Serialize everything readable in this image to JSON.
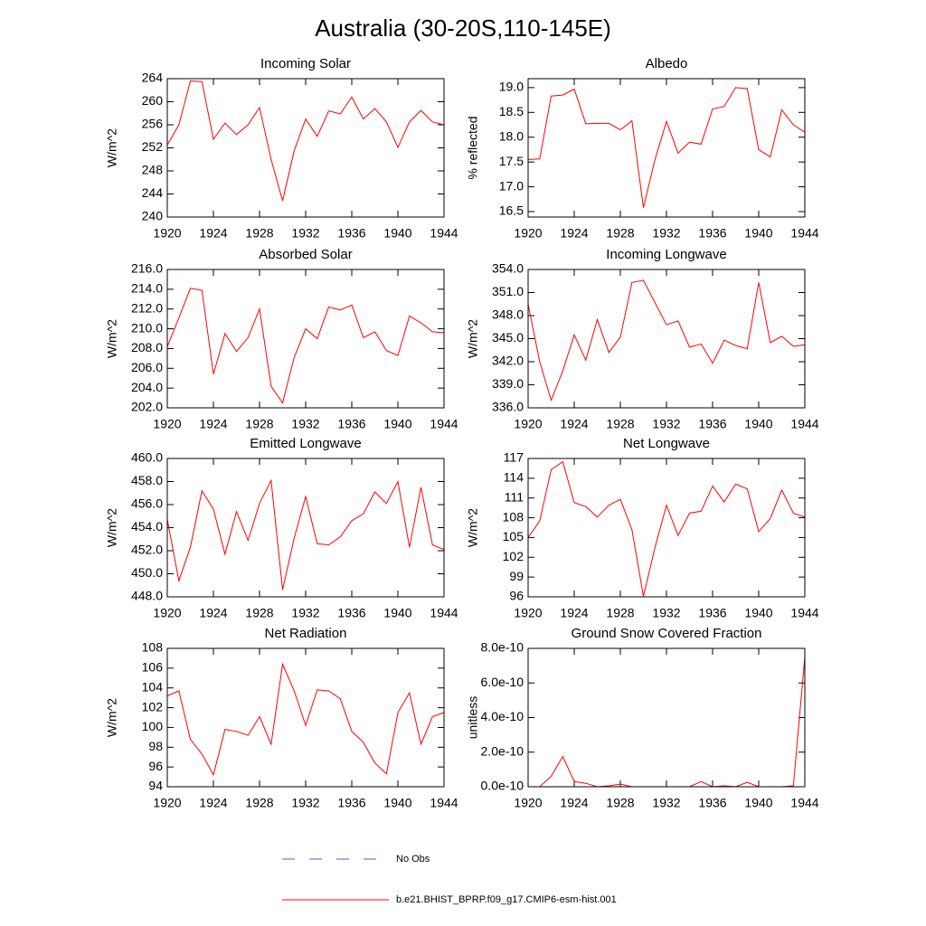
{
  "title": "Australia (30-20S,110-145E)",
  "legend": [
    {
      "label": "No Obs",
      "color": "#5a5acd",
      "dash": true
    },
    {
      "label": "b.e21.BHIST_BPRP.f09_g17.CMIP6-esm-hist.001",
      "color": "#ff0000",
      "dash": false
    }
  ],
  "chart_data": [
    {
      "type": "line",
      "title": "Incoming Solar",
      "y_label": "W/m^2",
      "color": "#ff0000",
      "x": [
        1920,
        1921,
        1922,
        1923,
        1924,
        1925,
        1926,
        1927,
        1928,
        1929,
        1930,
        1931,
        1932,
        1933,
        1934,
        1935,
        1936,
        1937,
        1938,
        1939,
        1940,
        1941,
        1942,
        1943,
        1944
      ],
      "values": [
        252.5,
        256,
        263.6,
        263.5,
        253.5,
        256.3,
        254.3,
        256,
        259,
        250,
        242.8,
        251.5,
        257,
        254,
        258.4,
        257.9,
        260.8,
        257,
        258.8,
        256.5,
        252.1,
        256.5,
        258.5,
        256.5,
        256
      ],
      "xlim": [
        1920,
        1944
      ],
      "xticks": [
        1920,
        1924,
        1928,
        1932,
        1936,
        1940,
        1944
      ],
      "ylim": [
        240,
        264
      ],
      "yticks": [
        240,
        244,
        248,
        252,
        256,
        260,
        264
      ]
    },
    {
      "type": "line",
      "title": "Albedo",
      "y_label": "% reflected",
      "color": "#ff0000",
      "x": [
        1920,
        1921,
        1922,
        1923,
        1924,
        1925,
        1926,
        1927,
        1928,
        1929,
        1930,
        1931,
        1932,
        1933,
        1934,
        1935,
        1936,
        1937,
        1938,
        1939,
        1940,
        1941,
        1942,
        1943,
        1944
      ],
      "values": [
        17.55,
        17.56,
        18.83,
        18.85,
        18.97,
        18.27,
        18.28,
        18.28,
        18.15,
        18.33,
        16.58,
        17.55,
        18.32,
        17.68,
        17.9,
        17.86,
        18.57,
        18.62,
        19.0,
        18.98,
        17.75,
        17.6,
        18.55,
        18.25,
        18.1
      ],
      "xlim": [
        1920,
        1944
      ],
      "xticks": [
        1920,
        1924,
        1928,
        1932,
        1936,
        1940,
        1944
      ],
      "ylim": [
        16.39,
        19.18
      ],
      "yticks": [
        16.5,
        {
          "value": 17,
          "label": "17.0"
        },
        17.5,
        {
          "value": 18,
          "label": "18.0"
        },
        18.5,
        {
          "value": 19,
          "label": "19.0"
        }
      ]
    },
    {
      "type": "line",
      "title": "Absorbed Solar",
      "y_label": "W/m^2",
      "color": "#ff0000",
      "x": [
        1920,
        1921,
        1922,
        1923,
        1924,
        1925,
        1926,
        1927,
        1928,
        1929,
        1930,
        1931,
        1932,
        1933,
        1934,
        1935,
        1936,
        1937,
        1938,
        1939,
        1940,
        1941,
        1942,
        1943,
        1944
      ],
      "values": [
        208.2,
        211.1,
        214.1,
        213.9,
        205.4,
        209.5,
        207.7,
        209.1,
        212.0,
        204.2,
        202.5,
        207.1,
        210.0,
        209.0,
        212.2,
        211.9,
        212.4,
        209.1,
        209.7,
        207.8,
        207.3,
        211.3,
        210.6,
        209.7,
        209.6
      ],
      "xlim": [
        1920,
        1944
      ],
      "xticks": [
        1920,
        1924,
        1928,
        1932,
        1936,
        1940,
        1944
      ],
      "ylim": [
        202,
        216
      ],
      "yticks": [
        {
          "value": 202,
          "label": "202.0"
        },
        {
          "value": 204,
          "label": "204.0"
        },
        {
          "value": 206,
          "label": "206.0"
        },
        {
          "value": 208,
          "label": "208.0"
        },
        {
          "value": 210,
          "label": "210.0"
        },
        {
          "value": 212,
          "label": "212.0"
        },
        {
          "value": 214,
          "label": "214.0"
        },
        {
          "value": 216,
          "label": "216.0"
        }
      ]
    },
    {
      "type": "line",
      "title": "Incoming Longwave",
      "y_label": "W/m^2",
      "color": "#ff0000",
      "x": [
        1920,
        1921,
        1922,
        1923,
        1924,
        1925,
        1926,
        1927,
        1928,
        1929,
        1930,
        1931,
        1932,
        1933,
        1934,
        1935,
        1936,
        1937,
        1938,
        1939,
        1940,
        1941,
        1942,
        1943,
        1944
      ],
      "values": [
        349.5,
        342,
        337,
        340.8,
        345.5,
        342.2,
        347.5,
        343.2,
        345.2,
        352.3,
        352.6,
        349.7,
        346.8,
        347.3,
        343.9,
        344.3,
        341.8,
        344.8,
        344.1,
        343.7,
        352.3,
        344.5,
        345.3,
        344,
        344.2
      ],
      "xlim": [
        1920,
        1944
      ],
      "xticks": [
        1920,
        1924,
        1928,
        1932,
        1936,
        1940,
        1944
      ],
      "ylim": [
        336,
        354
      ],
      "yticks": [
        {
          "value": 336,
          "label": "336.0"
        },
        {
          "value": 339,
          "label": "339.0"
        },
        {
          "value": 342,
          "label": "342.0"
        },
        {
          "value": 345,
          "label": "345.0"
        },
        {
          "value": 348,
          "label": "348.0"
        },
        {
          "value": 351,
          "label": "351.0"
        },
        {
          "value": 354,
          "label": "354.0"
        }
      ]
    },
    {
      "type": "line",
      "title": "Emitted Longwave",
      "y_label": "W/m^2",
      "color": "#ff0000",
      "x": [
        1920,
        1921,
        1922,
        1923,
        1924,
        1925,
        1926,
        1927,
        1928,
        1929,
        1930,
        1931,
        1932,
        1933,
        1934,
        1935,
        1936,
        1937,
        1938,
        1939,
        1940,
        1941,
        1942,
        1943,
        1944
      ],
      "values": [
        454.7,
        449.4,
        452.3,
        457.2,
        455.6,
        451.7,
        455.4,
        452.9,
        456.1,
        458.1,
        448.6,
        453.1,
        456.7,
        452.6,
        452.5,
        453.2,
        454.6,
        455.2,
        457.1,
        456.1,
        458,
        452.3,
        457.5,
        452.5,
        452.1
      ],
      "xlim": [
        1920,
        1944
      ],
      "xticks": [
        1920,
        1924,
        1928,
        1932,
        1936,
        1940,
        1944
      ],
      "ylim": [
        448,
        460
      ],
      "yticks": [
        {
          "value": 448,
          "label": "448.0"
        },
        {
          "value": 450,
          "label": "450.0"
        },
        {
          "value": 452,
          "label": "452.0"
        },
        {
          "value": 454,
          "label": "454.0"
        },
        {
          "value": 456,
          "label": "456.0"
        },
        {
          "value": 458,
          "label": "458.0"
        },
        {
          "value": 460,
          "label": "460.0"
        }
      ]
    },
    {
      "type": "line",
      "title": "Net Longwave",
      "y_label": "W/m^2",
      "color": "#ff0000",
      "x": [
        1920,
        1921,
        1922,
        1923,
        1924,
        1925,
        1926,
        1927,
        1928,
        1929,
        1930,
        1931,
        1932,
        1933,
        1934,
        1935,
        1936,
        1937,
        1938,
        1939,
        1940,
        1941,
        1942,
        1943,
        1944
      ],
      "values": [
        105,
        107.5,
        115.3,
        116.5,
        110.3,
        109.7,
        108.1,
        109.9,
        110.8,
        106.2,
        96.1,
        103.5,
        109.9,
        105.3,
        108.7,
        109,
        112.8,
        110.4,
        113.1,
        112.4,
        105.9,
        107.9,
        112.2,
        108.7,
        108.1
      ],
      "xlim": [
        1920,
        1944
      ],
      "xticks": [
        1920,
        1924,
        1928,
        1932,
        1936,
        1940,
        1944
      ],
      "ylim": [
        96,
        117
      ],
      "yticks": [
        96,
        99,
        102,
        105,
        108,
        111,
        114,
        117
      ]
    },
    {
      "type": "line",
      "title": "Net Radiation",
      "y_label": "W/m^2",
      "color": "#ff0000",
      "x": [
        1920,
        1921,
        1922,
        1923,
        1924,
        1925,
        1926,
        1927,
        1928,
        1929,
        1930,
        1931,
        1932,
        1933,
        1934,
        1935,
        1936,
        1937,
        1938,
        1939,
        1940,
        1941,
        1942,
        1943,
        1944
      ],
      "values": [
        103.2,
        103.7,
        98.8,
        97.3,
        95.2,
        99.8,
        99.6,
        99.2,
        101.1,
        98.3,
        106.4,
        103.7,
        100.2,
        103.8,
        103.7,
        102.9,
        99.6,
        98.5,
        96.4,
        95.3,
        101.5,
        103.5,
        98.3,
        101.1,
        101.5
      ],
      "xlim": [
        1920,
        1944
      ],
      "xticks": [
        1920,
        1924,
        1928,
        1932,
        1936,
        1940,
        1944
      ],
      "ylim": [
        94,
        108
      ],
      "yticks": [
        94,
        96,
        98,
        100,
        102,
        104,
        106,
        108
      ]
    },
    {
      "type": "line",
      "title": "Ground Snow Covered Fraction",
      "y_label": "unitless",
      "color": "#ff0000",
      "x": [
        1920,
        1921,
        1922,
        1923,
        1924,
        1925,
        1926,
        1927,
        1928,
        1929,
        1930,
        1931,
        1932,
        1933,
        1934,
        1935,
        1936,
        1937,
        1938,
        1939,
        1940,
        1941,
        1942,
        1943,
        1944
      ],
      "values": [
        0,
        0,
        6e-11,
        1.75e-10,
        3e-11,
        2e-11,
        0,
        5e-12,
        1.5e-11,
        0,
        0,
        0,
        0,
        0,
        0,
        3e-11,
        0,
        5e-12,
        0,
        2.5e-11,
        0,
        0,
        0,
        5e-12,
        7.5e-10
      ],
      "xlim": [
        1920,
        1944
      ],
      "xticks": [
        1920,
        1924,
        1928,
        1932,
        1936,
        1940,
        1944
      ],
      "ylim": [
        0,
        8e-10
      ],
      "yticks": [
        {
          "value": 0,
          "label": "0.0e-10"
        },
        {
          "value": 2e-10,
          "label": "2.0e-10"
        },
        {
          "value": 4e-10,
          "label": "4.0e-10"
        },
        {
          "value": 6e-10,
          "label": "6.0e-10"
        },
        {
          "value": 8e-10,
          "label": "8.0e-10"
        }
      ]
    }
  ]
}
